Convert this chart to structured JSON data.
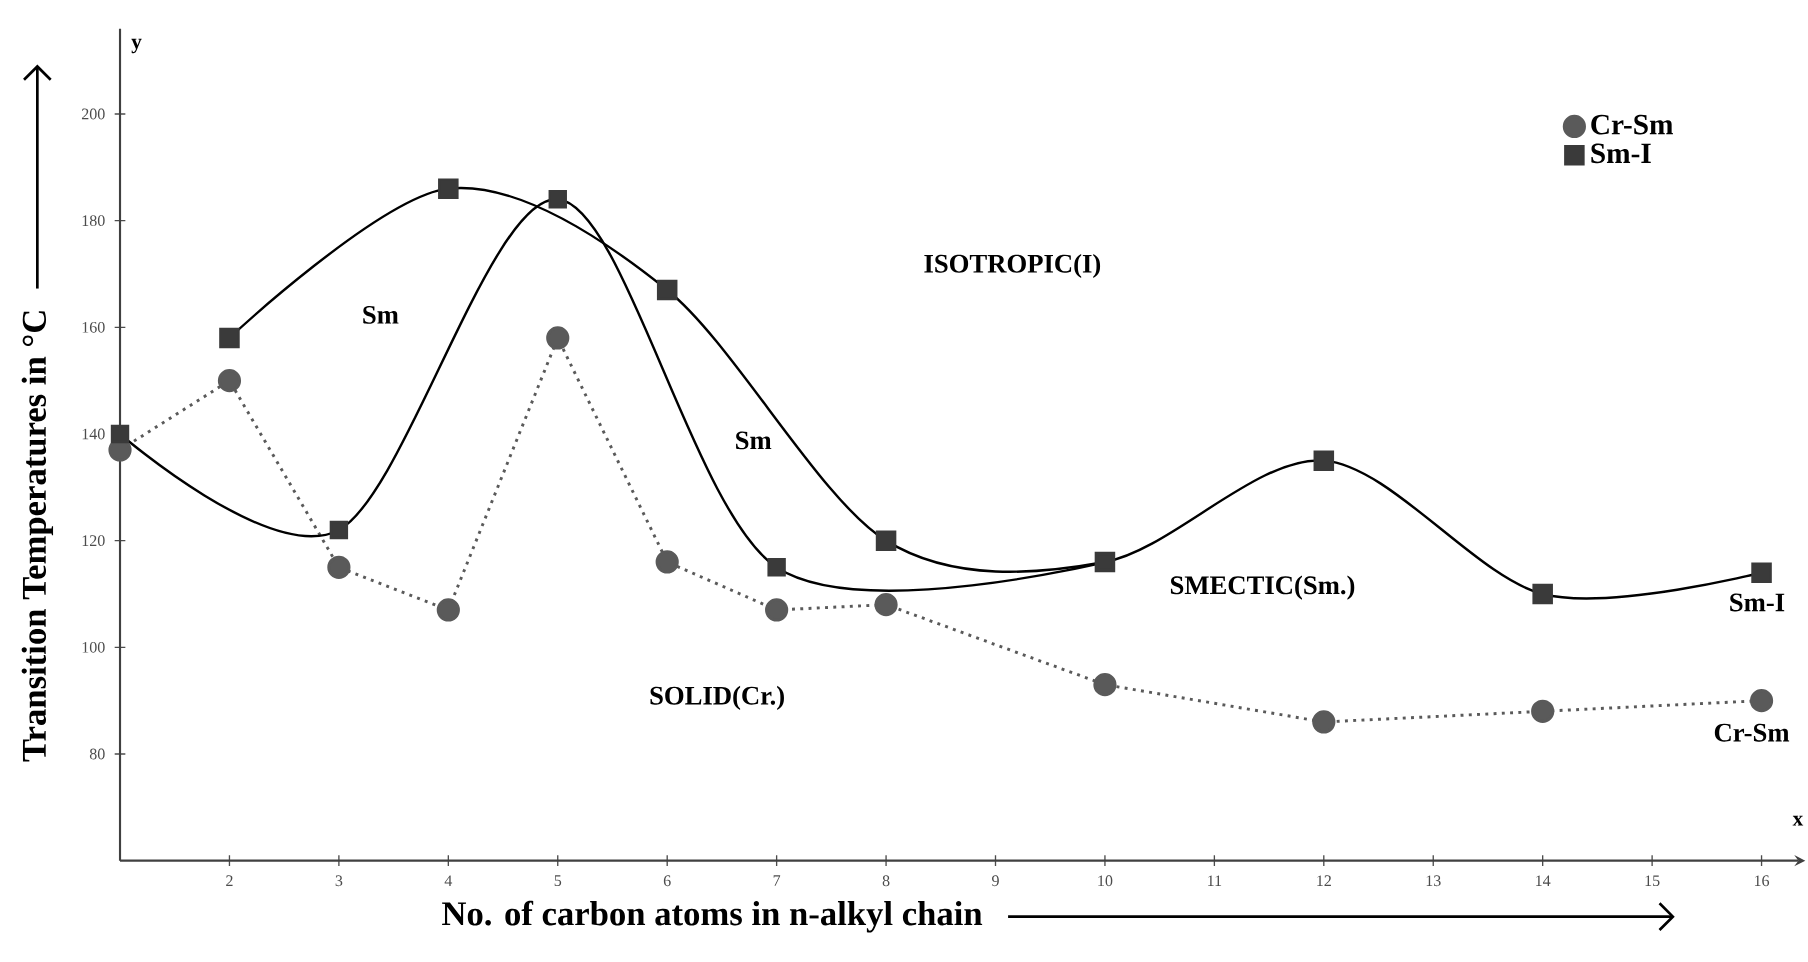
{
  "chart_data": {
    "type": "line",
    "xlabel": "No. of carbon atoms in n-alkyl chain",
    "ylabel": "Transition Temperatures in °C",
    "xlim": [
      1,
      16.4
    ],
    "ylim": [
      60,
      216
    ],
    "xticks": [
      2,
      3,
      4,
      5,
      6,
      7,
      8,
      9,
      10,
      11,
      12,
      13,
      14,
      15,
      16
    ],
    "yticks": [
      80,
      100,
      120,
      140,
      160,
      180,
      200
    ],
    "legend": "top right",
    "series": [
      {
        "name": "Cr-Sm",
        "color": "#5a5a5a",
        "marker": "circle",
        "line_style": "dotted",
        "x": [
          1,
          2,
          3,
          4,
          5,
          6,
          7,
          8,
          10,
          12,
          14,
          16
        ],
        "values": [
          137,
          150,
          115,
          107,
          158,
          116,
          107,
          108,
          93,
          86,
          88,
          90
        ]
      },
      {
        "name": "Sm-I",
        "color": "#3a3a3a",
        "marker": "square",
        "line_style": "solid",
        "x": [
          2,
          4,
          6,
          8,
          10,
          12,
          14,
          16
        ],
        "values": [
          158,
          186,
          167,
          120,
          116,
          135,
          110,
          114
        ]
      },
      {
        "color": "#3a3a3a",
        "marker": "square",
        "line_style": "solid",
        "x": [
          1,
          3,
          5,
          7,
          10
        ],
        "values": [
          140,
          122,
          184,
          115,
          116
        ]
      }
    ],
    "annotations": [
      "Sm",
      "ISOTROPIC(I)",
      "Sm",
      "SMECTIC(Sm.)",
      "SOLID(Cr.)",
      "Sm-I",
      "Cr-Sm",
      "y",
      "x"
    ]
  }
}
